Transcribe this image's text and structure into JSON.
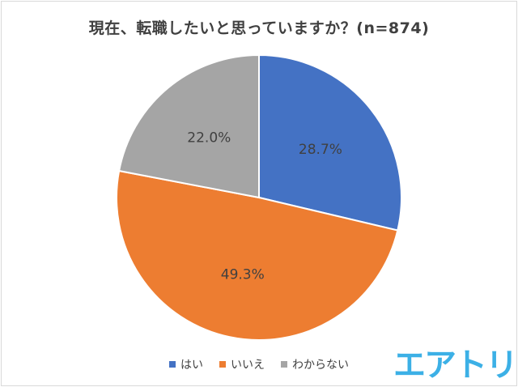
{
  "chart_data": {
    "type": "pie",
    "title": "現在、転職したいと思っていますか？(n=874)",
    "categories": [
      "はい",
      "いいえ",
      "わからない"
    ],
    "values": [
      28.7,
      49.3,
      22.0
    ],
    "labels": [
      "28.7%",
      "49.3%",
      "22.0%"
    ],
    "colors": [
      "#4472c4",
      "#ed7d31",
      "#a5a5a5"
    ],
    "legend_position": "bottom"
  },
  "logo_text": "エアトリ"
}
